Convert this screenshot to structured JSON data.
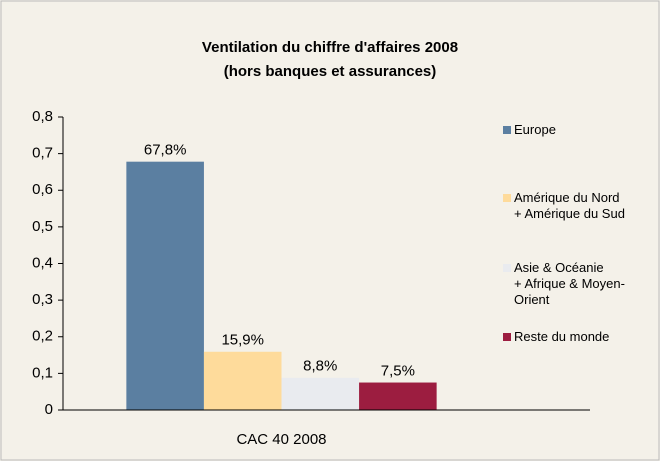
{
  "chart_data": {
    "type": "bar",
    "title": [
      "Ventilation du chiffre d'affaires 2008",
      "(hors banques et assurances)"
    ],
    "categories": [
      "CAC 40 2008"
    ],
    "series": [
      {
        "name": "Europe",
        "color": "#5b7fa1",
        "values": [
          0.678
        ],
        "value_labels": [
          "67,8%"
        ]
      },
      {
        "name": "Amérique du Nord\n+ Amérique du Sud",
        "color": "#fedb9b",
        "values": [
          0.159
        ],
        "value_labels": [
          "15,9%"
        ]
      },
      {
        "name": "Asie & Océanie\n+ Afrique & Moyen-Orient",
        "color": "#e9ebef",
        "values": [
          0.088
        ],
        "value_labels": [
          "8,8%"
        ]
      },
      {
        "name": "Reste du monde",
        "color": "#9c1d40",
        "values": [
          0.075
        ],
        "value_labels": [
          "7,5%"
        ]
      }
    ],
    "ylim": [
      0,
      0.8
    ],
    "yticks": [
      0,
      {
        "value": 0.1,
        "label": "0,1"
      },
      {
        "value": 0.2,
        "label": "0,2"
      },
      {
        "value": 0.3,
        "label": "0,3"
      },
      {
        "value": 0.4,
        "label": "0,4"
      },
      {
        "value": 0.5,
        "label": "0,5"
      },
      {
        "value": 0.6,
        "label": "0,6"
      },
      {
        "value": 0.7,
        "label": "0,7"
      },
      {
        "value": 0.8,
        "label": "0,8"
      }
    ],
    "legend": "right"
  }
}
